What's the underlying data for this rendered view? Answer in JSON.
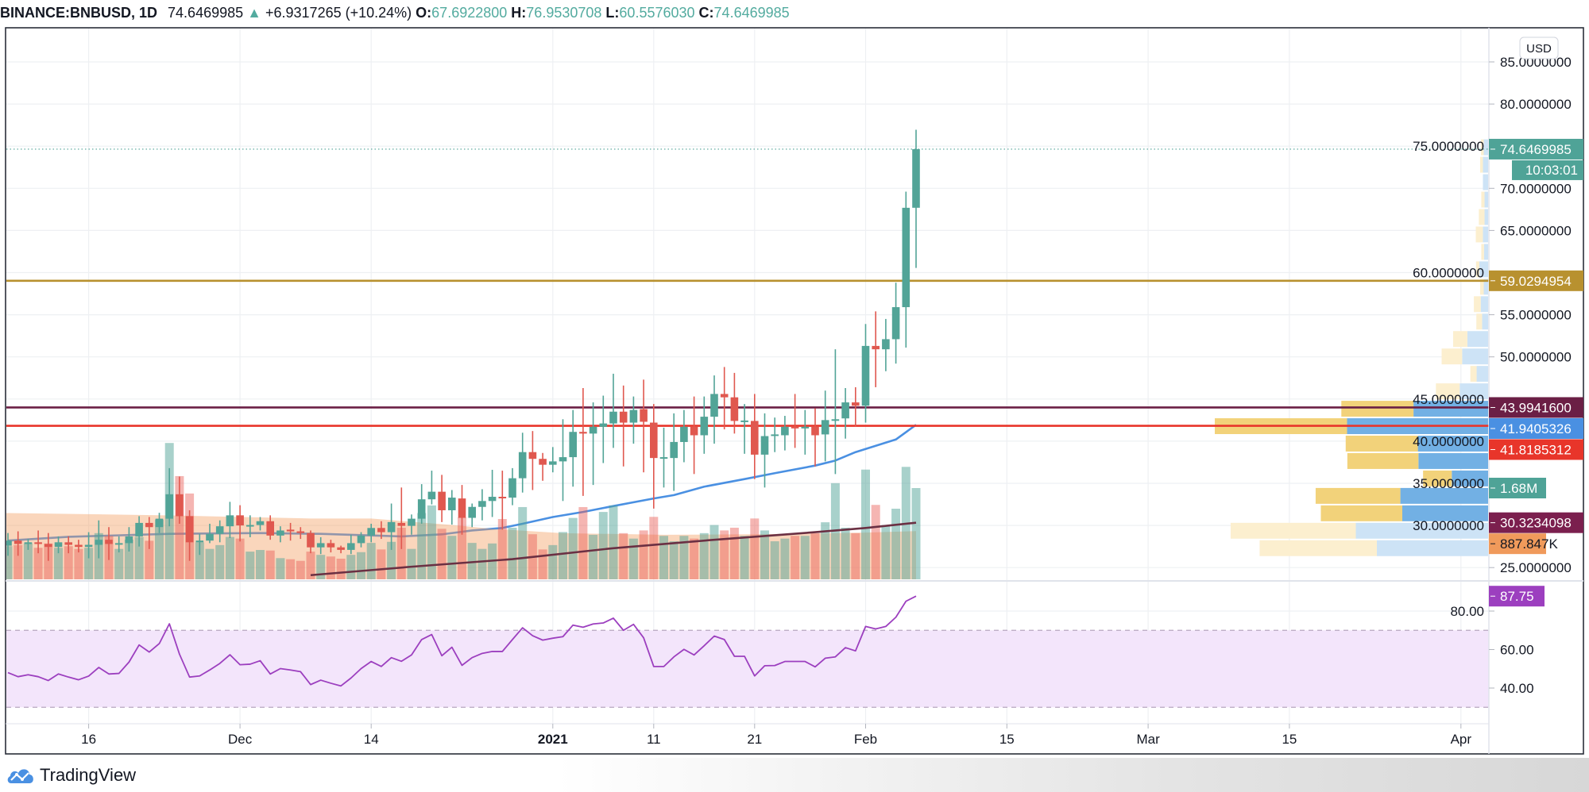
{
  "header": {
    "symbol": "BINANCE:BNBUSD, 1D",
    "last": "74.6469985",
    "change_icon": "triangle-up-icon",
    "change": "+6.9317265 (+10.24%)",
    "o_label": "O:",
    "o": "67.6922800",
    "h_label": "H:",
    "h": "76.9530708",
    "l_label": "L:",
    "l": "60.5576030",
    "c_label": "C:",
    "c": "74.6469985"
  },
  "currency_button": "USD",
  "footer": {
    "brand": "TradingView",
    "logo_icon": "tradingview-cloud-icon"
  },
  "colors": {
    "up": "#52a497",
    "down": "#e0584f",
    "vol_up": "rgba(82,164,151,0.5)",
    "vol_down": "rgba(232,90,85,0.45)",
    "vol_ma_fill": "rgba(243,158,95,0.42)",
    "ma_blue": "#4a90e2",
    "ma_dark": "#6b3043",
    "rsi": "#9c3fbf",
    "rsi_band": "#f3e5fb",
    "profile_up": "#72b0e4",
    "profile_down": "#f2d27a",
    "profile_up_light": "#cde3f6",
    "profile_down_light": "#fcefcf"
  },
  "chart_data": {
    "type": "candlestick",
    "price_ylim": [
      25,
      85
    ],
    "price_ticks": [
      "85.0000000",
      "80.0000000",
      "75.0000000",
      "70.0000000",
      "65.0000000",
      "60.0000000",
      "55.0000000",
      "50.0000000",
      "45.0000000",
      "40.0000000",
      "35.0000000",
      "30.0000000",
      "25.0000000"
    ],
    "time_ticks": [
      {
        "label": "16",
        "date": "2020-11-16"
      },
      {
        "label": "Dec",
        "date": "2020-12-01"
      },
      {
        "label": "14",
        "date": "2020-12-14"
      },
      {
        "label": "2021",
        "date": "2021-01-01",
        "bold": true
      },
      {
        "label": "11",
        "date": "2021-01-11"
      },
      {
        "label": "21",
        "date": "2021-01-21"
      },
      {
        "label": "Feb",
        "date": "2021-02-01"
      },
      {
        "label": "15",
        "date": "2021-02-15"
      },
      {
        "label": "Mar",
        "date": "2021-03-01"
      },
      {
        "label": "15",
        "date": "2021-03-15"
      },
      {
        "label": "Apr",
        "date": "2021-04-01"
      }
    ],
    "candle_fields": [
      "date",
      "open",
      "high",
      "low",
      "close",
      "volume_M"
    ],
    "candles": [
      [
        "2020-11-08",
        27.6,
        29.1,
        26.4,
        28.2,
        0.61
      ],
      [
        "2020-11-09",
        28.2,
        29.3,
        26.4,
        27.8,
        0.63
      ],
      [
        "2020-11-10",
        27.8,
        28.4,
        27.1,
        28.0,
        0.66
      ],
      [
        "2020-11-11",
        28.0,
        29.4,
        26.7,
        27.8,
        0.58
      ],
      [
        "2020-11-12",
        27.8,
        29.1,
        25.8,
        27.45,
        0.66
      ],
      [
        "2020-11-13",
        27.45,
        28.7,
        26.7,
        28.0,
        0.58
      ],
      [
        "2020-11-14",
        28.0,
        28.7,
        26.7,
        27.7,
        0.61
      ],
      [
        "2020-11-15",
        27.7,
        28.3,
        26.8,
        27.45,
        0.56
      ],
      [
        "2020-11-16",
        27.45,
        29.2,
        26.1,
        27.7,
        0.58
      ],
      [
        "2020-11-17",
        27.7,
        30.6,
        26.1,
        28.3,
        0.85
      ],
      [
        "2020-11-18",
        28.3,
        29.8,
        25.9,
        27.8,
        0.8
      ],
      [
        "2020-11-19",
        27.8,
        28.7,
        26.8,
        27.9,
        0.56
      ],
      [
        "2020-11-20",
        27.9,
        29.8,
        26.9,
        28.7,
        0.73
      ],
      [
        "2020-11-21",
        28.7,
        31.1,
        27.5,
        30.3,
        0.78
      ],
      [
        "2020-11-22",
        30.3,
        31.0,
        27.2,
        29.8,
        0.71
      ],
      [
        "2020-11-23",
        29.8,
        31.5,
        29.1,
        30.8,
        1.1
      ],
      [
        "2020-11-24",
        30.8,
        36.8,
        29.9,
        33.7,
        2.51
      ],
      [
        "2020-11-25",
        33.7,
        35.8,
        30.2,
        31.1,
        1.9
      ],
      [
        "2020-11-26",
        31.1,
        31.8,
        25.8,
        28.0,
        1.58
      ],
      [
        "2020-11-27",
        28.0,
        29.0,
        26.5,
        28.2,
        0.68
      ],
      [
        "2020-11-28",
        28.2,
        30.2,
        27.9,
        29.0,
        0.56
      ],
      [
        "2020-11-29",
        29.0,
        30.6,
        28.0,
        29.9,
        0.63
      ],
      [
        "2020-11-30",
        29.9,
        32.8,
        28.5,
        31.2,
        0.78
      ],
      [
        "2020-12-01",
        31.2,
        32.4,
        28.1,
        30.0,
        0.75
      ],
      [
        "2020-12-02",
        30.0,
        31.2,
        28.6,
        30.05,
        0.51
      ],
      [
        "2020-12-03",
        30.05,
        31.0,
        29.4,
        30.5,
        0.54
      ],
      [
        "2020-12-04",
        30.5,
        31.2,
        28.3,
        28.8,
        0.53
      ],
      [
        "2020-12-05",
        28.8,
        29.9,
        28.0,
        29.4,
        0.39
      ],
      [
        "2020-12-06",
        29.5,
        30.3,
        28.2,
        29.3,
        0.37
      ],
      [
        "2020-12-07",
        29.3,
        29.8,
        28.4,
        29.1,
        0.34
      ],
      [
        "2020-12-08",
        29.1,
        29.4,
        26.7,
        27.4,
        0.51
      ],
      [
        "2020-12-09",
        27.4,
        28.6,
        26.6,
        27.9,
        0.45
      ],
      [
        "2020-12-10",
        27.9,
        28.3,
        26.8,
        27.4,
        0.42
      ],
      [
        "2020-12-11",
        27.4,
        27.6,
        26.7,
        27.1,
        0.38
      ],
      [
        "2020-12-12",
        27.1,
        28.9,
        26.6,
        27.9,
        0.45
      ],
      [
        "2020-12-13",
        27.9,
        29.2,
        27.4,
        28.8,
        0.5
      ],
      [
        "2020-12-14",
        28.8,
        30.2,
        28.0,
        29.7,
        0.67
      ],
      [
        "2020-12-15",
        29.7,
        30.5,
        28.4,
        29.2,
        0.55
      ],
      [
        "2020-12-16",
        29.2,
        32.6,
        27.1,
        30.4,
        0.69
      ],
      [
        "2020-12-17",
        30.3,
        34.5,
        27.2,
        29.95,
        0.95
      ],
      [
        "2020-12-18",
        29.95,
        31.3,
        28.9,
        30.8,
        0.56
      ],
      [
        "2020-12-19",
        30.8,
        34.9,
        30.2,
        33.1,
        1.22
      ],
      [
        "2020-12-20",
        33.1,
        36.5,
        32.5,
        34.0,
        1.36
      ],
      [
        "2020-12-21",
        34.0,
        36.0,
        30.4,
        31.8,
        0.93
      ],
      [
        "2020-12-22",
        31.8,
        34.2,
        30.1,
        33.3,
        0.8
      ],
      [
        "2020-12-23",
        33.2,
        34.8,
        28.9,
        30.9,
        1.14
      ],
      [
        "2020-12-24",
        30.9,
        32.6,
        29.8,
        32.2,
        0.67
      ],
      [
        "2020-12-25",
        32.2,
        34.3,
        30.6,
        32.9,
        0.56
      ],
      [
        "2020-12-26",
        32.9,
        36.6,
        31.0,
        33.4,
        0.66
      ],
      [
        "2020-12-27",
        33.4,
        36.5,
        29.5,
        33.3,
        1.11
      ],
      [
        "2020-12-28",
        33.3,
        36.8,
        32.4,
        35.6,
        0.95
      ],
      [
        "2020-12-29",
        35.6,
        41.0,
        33.9,
        38.7,
        1.33
      ],
      [
        "2020-12-30",
        38.7,
        41.2,
        34.2,
        37.9,
        0.83
      ],
      [
        "2020-12-31",
        37.9,
        38.6,
        35.3,
        37.2,
        0.55
      ],
      [
        "2021-01-01",
        37.2,
        39.3,
        36.3,
        37.6,
        0.63
      ],
      [
        "2021-01-02",
        37.6,
        42.6,
        32.9,
        38.1,
        0.87
      ],
      [
        "2021-01-03",
        38.1,
        43.7,
        34.6,
        41.1,
        1.13
      ],
      [
        "2021-01-04",
        41.1,
        46.3,
        33.5,
        40.9,
        1.33
      ],
      [
        "2021-01-05",
        40.9,
        44.6,
        34.8,
        41.7,
        0.82
      ],
      [
        "2021-01-06",
        41.7,
        45.4,
        37.4,
        42.1,
        1.24
      ],
      [
        "2021-01-07",
        42.1,
        48.0,
        39.2,
        43.5,
        1.36
      ],
      [
        "2021-01-08",
        43.5,
        46.6,
        37.0,
        42.2,
        0.85
      ],
      [
        "2021-01-09",
        42.2,
        45.3,
        39.7,
        43.7,
        0.75
      ],
      [
        "2021-01-10",
        43.8,
        47.3,
        36.3,
        42.3,
        0.9
      ],
      [
        "2021-01-11",
        42.2,
        44.4,
        32.0,
        38.0,
        1.15
      ],
      [
        "2021-01-12",
        38.0,
        41.6,
        34.5,
        38.1,
        0.8
      ],
      [
        "2021-01-13",
        38.0,
        43.3,
        34.1,
        39.9,
        0.7
      ],
      [
        "2021-01-14",
        39.9,
        43.7,
        37.5,
        41.7,
        0.8
      ],
      [
        "2021-01-15",
        41.7,
        45.3,
        36.1,
        40.7,
        0.75
      ],
      [
        "2021-01-16",
        40.7,
        45.3,
        38.5,
        42.9,
        0.85
      ],
      [
        "2021-01-17",
        42.9,
        47.8,
        39.7,
        45.6,
        1.0
      ],
      [
        "2021-01-18",
        45.6,
        48.8,
        41.4,
        45.2,
        0.9
      ],
      [
        "2021-01-19",
        45.2,
        48.1,
        40.9,
        42.4,
        0.95
      ],
      [
        "2021-01-20",
        42.4,
        44.4,
        38.5,
        42.45,
        0.8
      ],
      [
        "2021-01-21",
        42.4,
        45.6,
        35.5,
        38.4,
        1.12
      ],
      [
        "2021-01-22",
        38.4,
        43.3,
        34.5,
        40.6,
        0.9
      ],
      [
        "2021-01-23",
        40.7,
        42.8,
        38.7,
        40.8,
        0.7
      ],
      [
        "2021-01-24",
        40.7,
        43.0,
        38.9,
        41.7,
        0.75
      ],
      [
        "2021-01-25",
        41.7,
        45.6,
        39.2,
        41.6,
        0.8
      ],
      [
        "2021-01-26",
        41.6,
        43.7,
        38.4,
        41.7,
        0.8
      ],
      [
        "2021-01-27",
        41.7,
        43.9,
        37.0,
        40.7,
        0.85
      ],
      [
        "2021-01-28",
        40.8,
        46.0,
        37.6,
        42.5,
        1.05
      ],
      [
        "2021-01-29",
        42.5,
        50.9,
        36.1,
        42.6,
        1.77
      ],
      [
        "2021-01-30",
        42.7,
        46.3,
        40.3,
        44.6,
        0.95
      ],
      [
        "2021-01-31",
        44.6,
        46.4,
        41.7,
        44.2,
        0.85
      ],
      [
        "2021-02-01",
        44.2,
        53.9,
        42.2,
        51.3,
        2.02
      ],
      [
        "2021-02-02",
        51.3,
        55.4,
        46.4,
        50.9,
        1.37
      ],
      [
        "2021-02-03",
        50.9,
        54.5,
        48.3,
        52.1,
        1.0
      ],
      [
        "2021-02-04",
        52.1,
        58.8,
        49.2,
        55.9,
        1.3
      ],
      [
        "2021-02-05",
        55.9,
        69.6,
        51.1,
        67.69,
        2.07
      ],
      [
        "2021-02-06",
        67.69228,
        76.9530708,
        60.557603,
        74.6469985,
        1.68
      ]
    ],
    "ma_blue": [
      [
        "2020-11-08",
        28.2
      ],
      [
        "2020-11-14",
        28.65
      ],
      [
        "2020-11-24",
        29.0
      ],
      [
        "2020-12-03",
        29.1
      ],
      [
        "2020-12-09",
        29.0
      ],
      [
        "2020-12-17",
        28.7
      ],
      [
        "2020-12-21",
        28.94
      ],
      [
        "2020-12-24",
        29.4
      ],
      [
        "2020-12-27",
        29.7
      ],
      [
        "2020-12-29",
        30.2
      ],
      [
        "2021-01-01",
        31.0
      ],
      [
        "2021-01-04",
        31.6
      ],
      [
        "2021-01-07",
        32.3
      ],
      [
        "2021-01-11",
        33.2
      ],
      [
        "2021-01-13",
        33.6
      ],
      [
        "2021-01-16",
        34.6
      ],
      [
        "2021-01-20",
        35.5
      ],
      [
        "2021-01-23",
        36.2
      ],
      [
        "2021-01-27",
        37.1
      ],
      [
        "2021-01-29",
        37.7
      ],
      [
        "2021-01-31",
        38.7
      ],
      [
        "2021-02-04",
        40.2
      ],
      [
        "2021-02-06",
        41.9405326
      ]
    ],
    "ma_dark": [
      [
        "2020-12-08",
        24.1
      ],
      [
        "2020-12-14",
        24.7
      ],
      [
        "2020-12-18",
        25.1
      ],
      [
        "2020-12-28",
        26.0
      ],
      [
        "2021-01-07",
        27.3
      ],
      [
        "2021-01-17",
        28.3
      ],
      [
        "2021-01-27",
        29.2
      ],
      [
        "2021-02-01",
        29.7
      ],
      [
        "2021-02-06",
        30.3234098
      ]
    ],
    "volume_ma_M": [
      [
        "2020-11-08",
        1.22
      ],
      [
        "2020-11-23",
        1.18
      ],
      [
        "2020-12-08",
        1.12
      ],
      [
        "2020-12-14",
        1.12
      ],
      [
        "2020-12-18",
        1.06
      ],
      [
        "2020-12-22",
        1.0
      ],
      [
        "2020-12-26",
        0.93
      ],
      [
        "2021-01-02",
        0.85
      ],
      [
        "2021-01-12",
        0.82
      ],
      [
        "2021-01-22",
        0.83
      ],
      [
        "2021-02-01",
        0.86
      ],
      [
        "2021-02-06",
        0.887847
      ]
    ],
    "horizontal_lines": [
      {
        "value": 59.0294954,
        "color": "#b8912f"
      },
      {
        "value": 43.99416,
        "color": "#6b1f45"
      },
      {
        "value": 41.8185312,
        "color": "#e8352a"
      }
    ],
    "last_price": 74.6469985,
    "volume_profile": {
      "top_price": 75.9,
      "row_size": 2.068,
      "rows": [
        {
          "up": 0.016,
          "down": 0.01
        },
        {
          "up": 0.019,
          "down": 0.01
        },
        {
          "up": 0.019,
          "down": 0
        },
        {
          "up": 0.013,
          "down": 0.012
        },
        {
          "up": 0.013,
          "down": 0.021
        },
        {
          "up": 0.019,
          "down": 0.026
        },
        {
          "up": 0.015,
          "down": 0.01
        },
        {
          "up": 0.032,
          "down": 0.012
        },
        {
          "up": 0.016,
          "down": 0.013
        },
        {
          "up": 0.027,
          "down": 0.025
        },
        {
          "up": 0.022,
          "down": 0.021
        },
        {
          "up": 0.076,
          "down": 0.052
        },
        {
          "up": 0.095,
          "down": 0.075
        },
        {
          "up": 0.042,
          "down": 0.023
        },
        {
          "up": 0.104,
          "down": 0.087
        },
        {
          "up": 0.273,
          "down": 0.264,
          "value_area": true
        },
        {
          "up": 0.516,
          "down": 0.484,
          "value_area": true
        },
        {
          "up": 0.257,
          "down": 0.264,
          "value_area": true
        },
        {
          "up": 0.255,
          "down": 0.26,
          "value_area": true
        },
        {
          "up": 0.133,
          "down": 0.105,
          "value_area": true
        },
        {
          "up": 0.321,
          "down": 0.31,
          "value_area": true
        },
        {
          "up": 0.314,
          "down": 0.298,
          "value_area": true
        },
        {
          "up": 0.484,
          "down": 0.458
        },
        {
          "up": 0.407,
          "down": 0.429
        }
      ]
    },
    "axis_labels": [
      {
        "text": "74.6469985",
        "value": 74.6469985,
        "scale": "price",
        "bg": "#4fa397",
        "fg": "#ffffff"
      },
      {
        "text": "59.0294954",
        "value": 59.0294954,
        "scale": "price",
        "bg": "#b8912f",
        "fg": "#ffffff"
      },
      {
        "text": "43.9941600",
        "value": 43.99416,
        "scale": "price",
        "bg": "#6b1f45",
        "fg": "#ffffff"
      },
      {
        "text": "41.9405326",
        "value": 41.9405326,
        "scale": "price",
        "bg": "#4a90e2",
        "fg": "#ffffff"
      },
      {
        "text": "41.8185312",
        "value": 41.8185312,
        "scale": "price",
        "bg": "#e8352a",
        "fg": "#ffffff"
      },
      {
        "text": "1.68M",
        "value": 1.68,
        "scale": "volume",
        "bg": "#4fa397",
        "fg": "#ffffff",
        "short": true
      },
      {
        "text": "30.3234098",
        "value": 30.3234098,
        "scale": "price",
        "bg": "#7b1f4e",
        "fg": "#ffffff"
      },
      {
        "text": "887.847K",
        "value": 0.887847,
        "scale": "volume",
        "bg": "#f09a5b",
        "fg": "#131722",
        "short": true
      }
    ],
    "countdown": "10:03:01",
    "rsi": {
      "ticks": [
        "80.00",
        "60.00",
        "40.00"
      ],
      "upper_band": 70,
      "lower_band": 30,
      "last_label": "87.75",
      "values": [
        48.0,
        45.9,
        46.9,
        45.9,
        43.9,
        47.3,
        45.7,
        44.3,
        46.2,
        50.7,
        47.3,
        47.6,
        53.5,
        62.4,
        58.7,
        63.1,
        73.4,
        57.6,
        45.7,
        46.3,
        49.4,
        52.8,
        57.3,
        52.1,
        52.4,
        54.2,
        47.3,
        50.1,
        49.4,
        48.5,
        41.8,
        44.1,
        42.5,
        41.1,
        45.2,
        50.1,
        53.8,
        51.2,
        55.8,
        53.9,
        57.2,
        65.2,
        67.8,
        56.8,
        61.2,
        51.8,
        55.8,
        58.0,
        59.0,
        59.0,
        65.2,
        71.3,
        67.2,
        64.9,
        65.9,
        66.7,
        72.7,
        71.6,
        73.3,
        73.8,
        76.3,
        70.0,
        73.1,
        66.1,
        51.2,
        51.2,
        56.2,
        60.1,
        57.2,
        62.0,
        67.0,
        65.2,
        56.5,
        56.5,
        46.3,
        51.6,
        51.7,
        53.8,
        53.8,
        53.8,
        51.0,
        55.5,
        56.2,
        61.0,
        59.3,
        72.0,
        70.7,
        72.0,
        76.8,
        85.1,
        87.75
      ]
    }
  }
}
